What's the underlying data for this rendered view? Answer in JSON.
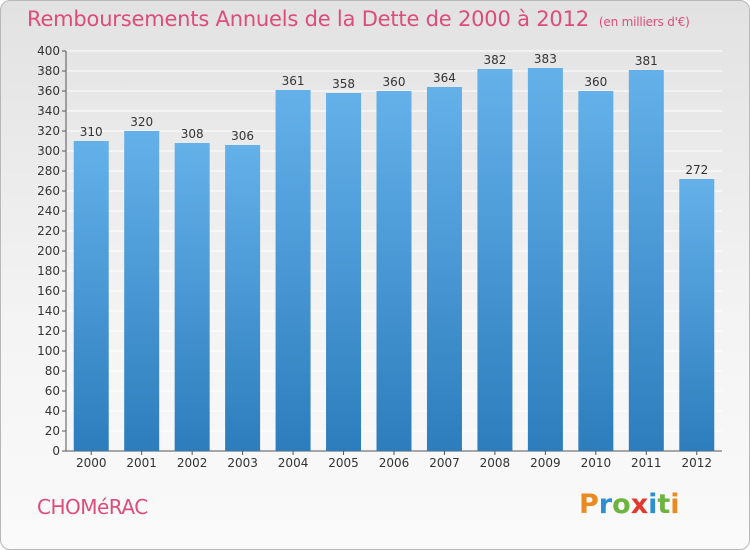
{
  "title": "Remboursements Annuels de la Dette de 2000 à 2012",
  "subtitle": "(en milliers d'€)",
  "commune": "CHOMéRAC",
  "logo": {
    "letters": [
      "P",
      "r",
      "o",
      "x",
      "i",
      "t",
      "i"
    ],
    "colors": [
      "#e98a22",
      "#2d8fd2",
      "#6cb33f",
      "#e03a2f",
      "#2d8fd2",
      "#6cb33f",
      "#e98a22"
    ]
  },
  "colors": {
    "bar_top": "#64b1ea",
    "bar_bottom": "#2d7dbd",
    "text": "#333333",
    "accent": "#dd4c7a"
  },
  "chart_data": {
    "type": "bar",
    "categories": [
      "2000",
      "2001",
      "2002",
      "2003",
      "2004",
      "2005",
      "2006",
      "2007",
      "2008",
      "2009",
      "2010",
      "2011",
      "2012"
    ],
    "values": [
      310,
      320,
      308,
      306,
      361,
      358,
      360,
      364,
      382,
      383,
      360,
      381,
      272
    ],
    "data_labels": [
      "310",
      "320",
      "308",
      "306",
      "361",
      "358",
      "360",
      "364",
      "382",
      "383",
      "360",
      "381",
      "272"
    ],
    "y_ticks": [
      "0",
      "20",
      "40",
      "60",
      "80",
      "100",
      "120",
      "140",
      "160",
      "180",
      "200",
      "220",
      "240",
      "260",
      "280",
      "300",
      "320",
      "340",
      "360",
      "380",
      "400"
    ],
    "ylim": [
      0,
      400
    ],
    "grid": true,
    "legend": "none"
  }
}
